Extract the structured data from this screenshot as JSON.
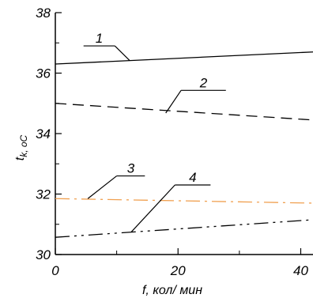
{
  "chart_data": {
    "type": "line",
    "title": "",
    "xlabel": "f, кол/ мин",
    "ylabel": "t",
    "ylabel_subscript": "k, оС",
    "xlim": [
      0,
      42
    ],
    "ylim": [
      30,
      38
    ],
    "x_ticks": [
      0,
      20,
      40
    ],
    "x_tick_labels": [
      "0",
      "20",
      "40"
    ],
    "y_ticks": [
      30,
      32,
      34,
      36,
      38
    ],
    "y_tick_labels": [
      "30",
      "32",
      "34",
      "36",
      "38"
    ],
    "grid": false,
    "legend": "none",
    "series": [
      {
        "name": "1",
        "x": [
          0,
          42
        ],
        "y": [
          36.3,
          36.7
        ],
        "color": "#000000",
        "line_style": "solid"
      },
      {
        "name": "2",
        "x": [
          0,
          42
        ],
        "y": [
          35.0,
          34.45
        ],
        "color": "#000000",
        "line_style": "dashed"
      },
      {
        "name": "3",
        "x": [
          0,
          42
        ],
        "y": [
          31.85,
          31.7
        ],
        "color": "#f0a050",
        "line_style": "dash-dot"
      },
      {
        "name": "4",
        "x": [
          0,
          42
        ],
        "y": [
          30.57,
          31.15
        ],
        "color": "#000000",
        "line_style": "dash-dot-dot"
      }
    ],
    "annotations": [
      {
        "text": "1",
        "series": "1",
        "line_x_from": 4.6,
        "line_x_to": 9.7,
        "line_y": 36.9,
        "leader_to_x": 12.1,
        "leader_to_y": 36.42
      },
      {
        "text": "2",
        "series": "2",
        "line_x_from": 20.5,
        "line_x_to": 27.8,
        "line_y": 35.43,
        "leader_to_x": 18.0,
        "leader_to_y": 34.68
      },
      {
        "text": "3",
        "series": "3",
        "line_x_from": 10.0,
        "line_x_to": 14.6,
        "line_y": 32.6,
        "leader_to_x": 5.3,
        "leader_to_y": 31.85
      },
      {
        "text": "4",
        "series": "4",
        "line_x_from": 19.5,
        "line_x_to": 25.3,
        "line_y": 32.3,
        "leader_to_x": 12.4,
        "leader_to_y": 30.75
      }
    ]
  }
}
